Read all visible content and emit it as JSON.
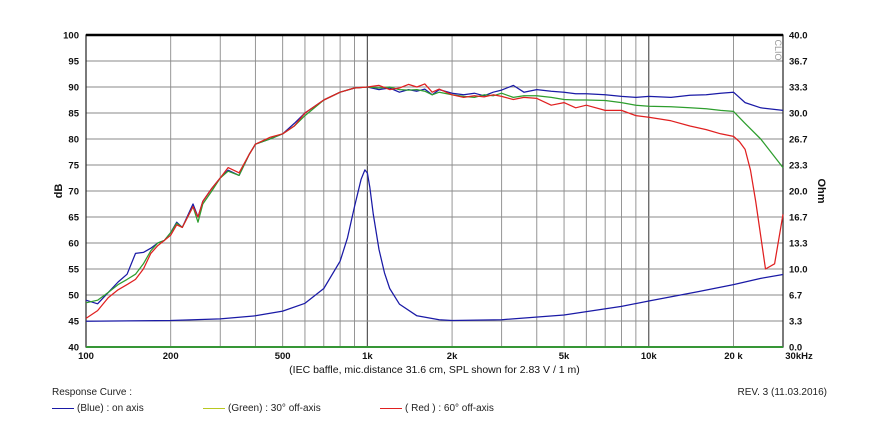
{
  "chart_data": {
    "type": "line",
    "xlabel": "(IEC baffle, mic.distance 31.6 cm, SPL shown for 2.83 V / 1 m)",
    "ylabel_left": "dB",
    "ylabel_right": "Ohm",
    "x_scale": "log",
    "xlim": [
      100,
      30000
    ],
    "ylim": [
      40,
      100
    ],
    "ylim_right": [
      0.0,
      40.0
    ],
    "grid": true,
    "x_ticks": [
      {
        "value": 100,
        "label": "100"
      },
      {
        "value": 200,
        "label": "200"
      },
      {
        "value": 500,
        "label": "500"
      },
      {
        "value": 1000,
        "label": "1k"
      },
      {
        "value": 2000,
        "label": "2k"
      },
      {
        "value": 5000,
        "label": "5k"
      },
      {
        "value": 10000,
        "label": "10k"
      },
      {
        "value": 20000,
        "label": "20 k"
      },
      {
        "value": 30000,
        "label": "30kHz"
      }
    ],
    "y_ticks_left": [
      "40",
      "45",
      "50",
      "55",
      "60",
      "65",
      "70",
      "75",
      "80",
      "85",
      "90",
      "95",
      "100"
    ],
    "y_ticks_right": [
      "0.0",
      "3.3",
      "6.7",
      "10.0",
      "13.3",
      "16.7",
      "20.0",
      "23.3",
      "26.7",
      "30.0",
      "33.3",
      "36.7",
      "40.0"
    ],
    "watermark": "CLIO",
    "colors": {
      "blue": "#1a1aa6",
      "green": "#2e9e2e",
      "red": "#e02020",
      "impedance": "#1a1aa6",
      "baseline": "#48c848"
    },
    "series": [
      {
        "name": "(Blue)  : on axis",
        "axis": "left",
        "color": "#1a1aa6",
        "x": [
          100,
          110,
          120,
          130,
          140,
          150,
          160,
          170,
          180,
          190,
          200,
          210,
          220,
          240,
          250,
          260,
          280,
          300,
          320,
          350,
          380,
          400,
          450,
          500,
          550,
          600,
          700,
          800,
          900,
          1000,
          1100,
          1200,
          1300,
          1400,
          1500,
          1600,
          1700,
          1800,
          2000,
          2200,
          2400,
          2600,
          2800,
          3000,
          3300,
          3600,
          4000,
          4500,
          5000,
          5500,
          6000,
          7000,
          8000,
          9000,
          10000,
          12000,
          14000,
          16000,
          18000,
          20000,
          22000,
          25000,
          30000
        ],
        "y": [
          49,
          48.3,
          50.5,
          52.5,
          54,
          58,
          58.2,
          59,
          60,
          60.5,
          62,
          64,
          63,
          67.5,
          65,
          68,
          70.5,
          72.5,
          74,
          73,
          77,
          79,
          80,
          81,
          83,
          85,
          87.5,
          89,
          89.8,
          90,
          89.5,
          89.8,
          89,
          89.5,
          89.2,
          89.6,
          88.5,
          89.5,
          88.8,
          88.5,
          88.8,
          88.3,
          89,
          89.4,
          90.3,
          89,
          89.5,
          89.2,
          89,
          88.7,
          88.7,
          88.5,
          88.2,
          88,
          88.2,
          88,
          88.4,
          88.5,
          88.8,
          89,
          87,
          86,
          85.5
        ]
      },
      {
        "name": "(Green)  : 30° off-axis",
        "axis": "left",
        "color": "#2e9e2e",
        "x": [
          100,
          110,
          120,
          130,
          140,
          150,
          160,
          170,
          180,
          190,
          200,
          210,
          220,
          240,
          250,
          260,
          280,
          300,
          320,
          350,
          380,
          400,
          450,
          500,
          550,
          600,
          700,
          800,
          900,
          1000,
          1100,
          1200,
          1300,
          1400,
          1500,
          1600,
          1700,
          1800,
          2000,
          2200,
          2400,
          2600,
          2800,
          3000,
          3300,
          3600,
          4000,
          4500,
          5000,
          5500,
          6000,
          7000,
          8000,
          9000,
          10000,
          12000,
          14000,
          16000,
          18000,
          20000,
          22000,
          25000,
          30000
        ],
        "y": [
          48.5,
          49,
          50.5,
          52,
          53,
          54,
          56,
          58.5,
          60,
          60.5,
          62,
          63.8,
          63,
          67,
          64,
          67.5,
          70,
          72.5,
          73.8,
          73,
          77,
          79,
          80,
          81,
          82.5,
          84.5,
          87.5,
          89,
          89.8,
          90,
          89.8,
          90,
          89.5,
          89.4,
          89.5,
          89.2,
          88.5,
          89,
          88.5,
          88.2,
          88,
          88.5,
          88.3,
          88.8,
          88,
          88.3,
          88.3,
          88,
          87.6,
          87.5,
          87.5,
          87.4,
          87,
          86.5,
          86.3,
          86.2,
          86,
          85.8,
          85.5,
          85.3,
          83,
          80,
          74.5
        ]
      },
      {
        "name": "( Red )  : 60° off-axis",
        "axis": "left",
        "color": "#e02020",
        "x": [
          100,
          110,
          120,
          130,
          140,
          150,
          160,
          170,
          180,
          190,
          200,
          210,
          220,
          240,
          250,
          260,
          280,
          300,
          320,
          350,
          380,
          400,
          450,
          500,
          550,
          600,
          700,
          800,
          900,
          1000,
          1100,
          1200,
          1300,
          1400,
          1500,
          1600,
          1700,
          1800,
          2000,
          2200,
          2400,
          2600,
          2800,
          3000,
          3300,
          3600,
          4000,
          4500,
          5000,
          5500,
          6000,
          7000,
          8000,
          9000,
          10000,
          12000,
          14000,
          16000,
          18000,
          20000,
          21000,
          22000,
          23000,
          24000,
          26000,
          28000,
          30000
        ],
        "y": [
          45.5,
          47,
          49.5,
          51,
          52,
          53,
          55,
          58,
          59.5,
          60.5,
          61.5,
          63.5,
          63,
          67,
          65,
          68,
          70.5,
          72.5,
          74.5,
          73.5,
          77,
          79,
          80.3,
          81,
          82.5,
          85,
          87.5,
          89,
          89.8,
          90,
          90.3,
          89.5,
          89.8,
          90.5,
          90,
          90.6,
          89,
          89.6,
          88.5,
          88,
          88.3,
          88.1,
          88.5,
          88.2,
          87.6,
          88,
          87.8,
          86.5,
          87,
          86,
          86.5,
          85.5,
          85.5,
          84.5,
          84.2,
          83.5,
          82.5,
          81.8,
          81,
          80.5,
          79.5,
          78,
          74,
          68,
          55,
          56,
          65.5
        ]
      },
      {
        "name": "Impedance",
        "axis": "right",
        "color": "#1a1aa6",
        "x": [
          100,
          200,
          300,
          400,
          500,
          600,
          700,
          800,
          850,
          900,
          950,
          980,
          1000,
          1020,
          1050,
          1100,
          1150,
          1200,
          1300,
          1500,
          1800,
          2000,
          3000,
          5000,
          8000,
          10000,
          15000,
          20000,
          25000,
          30000
        ],
        "y": [
          3.3,
          3.4,
          3.6,
          4.0,
          4.6,
          5.6,
          7.5,
          11,
          14,
          18,
          21.5,
          22.7,
          22.3,
          20.5,
          17,
          12.5,
          9.5,
          7.5,
          5.5,
          4.0,
          3.5,
          3.4,
          3.5,
          4.1,
          5.2,
          5.9,
          7.1,
          8.0,
          8.8,
          9.3
        ]
      },
      {
        "name": "Baseline",
        "axis": "right",
        "color": "#48c848",
        "x": [
          100,
          30000
        ],
        "y": [
          0.0,
          0.0
        ]
      }
    ]
  },
  "legend": {
    "title": "Response Curve :",
    "items": [
      {
        "dash": "——",
        "label": "(Blue)  : on axis"
      },
      {
        "dash": "——",
        "label": "(Green)  : 30° off-axis"
      },
      {
        "dash": "——",
        "label": "( Red )  : 60° off-axis"
      }
    ]
  },
  "revision": "REV. 3 (11.03.2016)"
}
